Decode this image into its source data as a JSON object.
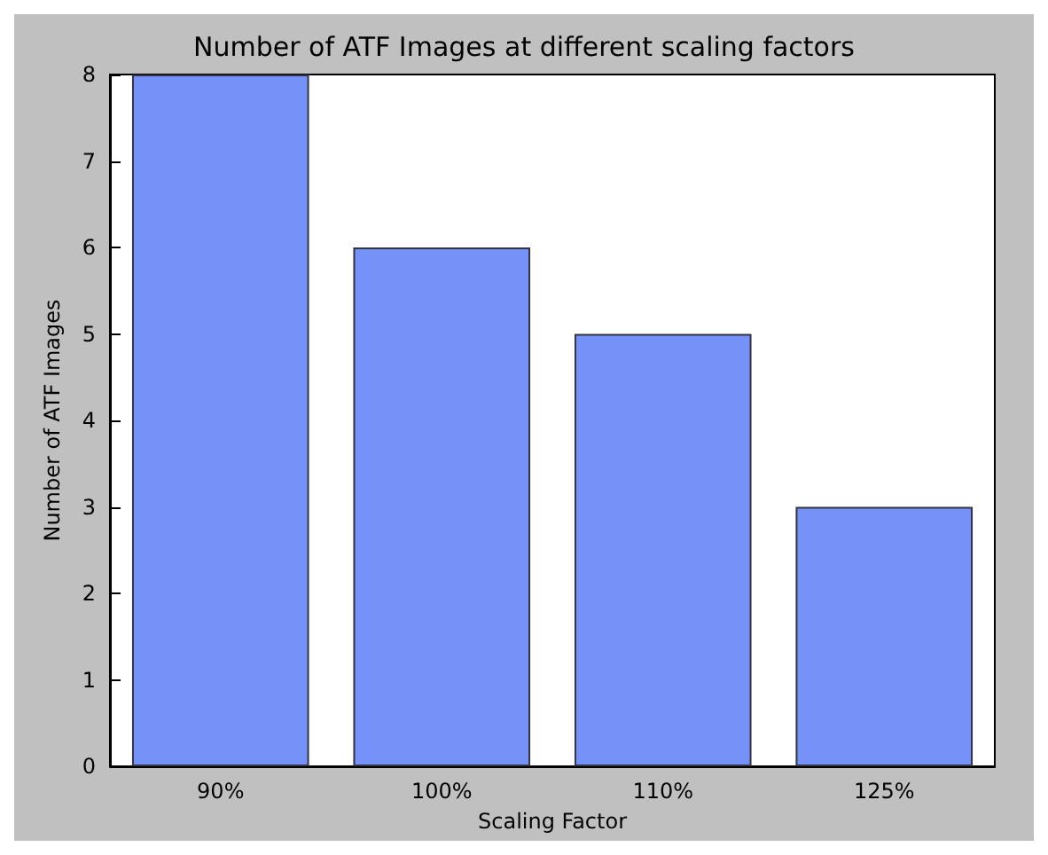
{
  "chart_data": {
    "type": "bar",
    "title": "Number of ATF Images at different scaling factors",
    "xlabel": "Scaling Factor",
    "ylabel": "Number of ATF Images",
    "categories": [
      "90%",
      "100%",
      "110%",
      "125%"
    ],
    "values": [
      8,
      6,
      5,
      3
    ],
    "color": "#7592f8",
    "ylim": [
      0,
      8
    ],
    "yticks": [
      0,
      1,
      2,
      3,
      4,
      5,
      6,
      7,
      8
    ]
  }
}
